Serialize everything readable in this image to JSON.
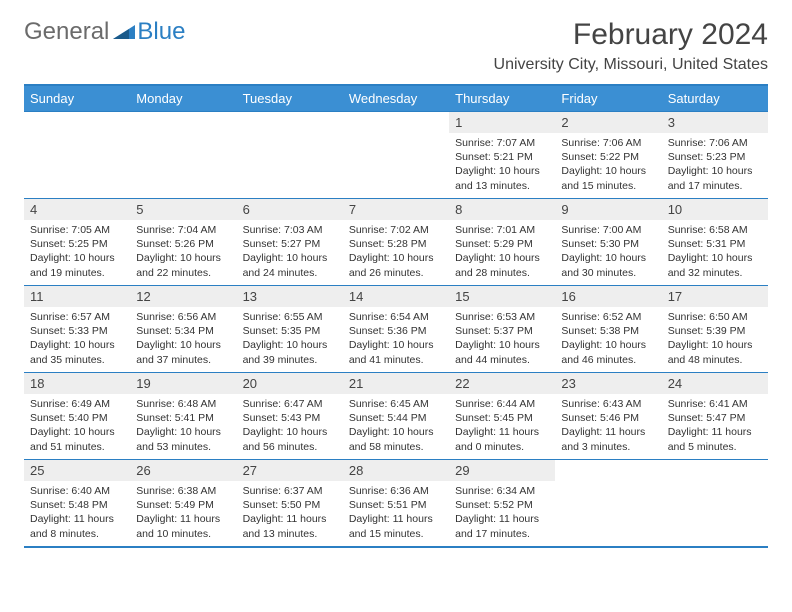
{
  "logo": {
    "word1": "General",
    "word2": "Blue"
  },
  "title": "February 2024",
  "location": "University City, Missouri, United States",
  "colors": {
    "accent": "#2b7fc3",
    "header_bg": "#3b8fd3",
    "daynum_bg": "#eeeeee",
    "text": "#333333",
    "title_text": "#444444",
    "logo_gray": "#6b6b6b"
  },
  "weekdays": [
    "Sunday",
    "Monday",
    "Tuesday",
    "Wednesday",
    "Thursday",
    "Friday",
    "Saturday"
  ],
  "weeks": [
    [
      {
        "num": "",
        "lines": []
      },
      {
        "num": "",
        "lines": []
      },
      {
        "num": "",
        "lines": []
      },
      {
        "num": "",
        "lines": []
      },
      {
        "num": "1",
        "lines": [
          "Sunrise: 7:07 AM",
          "Sunset: 5:21 PM",
          "Daylight: 10 hours and 13 minutes."
        ]
      },
      {
        "num": "2",
        "lines": [
          "Sunrise: 7:06 AM",
          "Sunset: 5:22 PM",
          "Daylight: 10 hours and 15 minutes."
        ]
      },
      {
        "num": "3",
        "lines": [
          "Sunrise: 7:06 AM",
          "Sunset: 5:23 PM",
          "Daylight: 10 hours and 17 minutes."
        ]
      }
    ],
    [
      {
        "num": "4",
        "lines": [
          "Sunrise: 7:05 AM",
          "Sunset: 5:25 PM",
          "Daylight: 10 hours and 19 minutes."
        ]
      },
      {
        "num": "5",
        "lines": [
          "Sunrise: 7:04 AM",
          "Sunset: 5:26 PM",
          "Daylight: 10 hours and 22 minutes."
        ]
      },
      {
        "num": "6",
        "lines": [
          "Sunrise: 7:03 AM",
          "Sunset: 5:27 PM",
          "Daylight: 10 hours and 24 minutes."
        ]
      },
      {
        "num": "7",
        "lines": [
          "Sunrise: 7:02 AM",
          "Sunset: 5:28 PM",
          "Daylight: 10 hours and 26 minutes."
        ]
      },
      {
        "num": "8",
        "lines": [
          "Sunrise: 7:01 AM",
          "Sunset: 5:29 PM",
          "Daylight: 10 hours and 28 minutes."
        ]
      },
      {
        "num": "9",
        "lines": [
          "Sunrise: 7:00 AM",
          "Sunset: 5:30 PM",
          "Daylight: 10 hours and 30 minutes."
        ]
      },
      {
        "num": "10",
        "lines": [
          "Sunrise: 6:58 AM",
          "Sunset: 5:31 PM",
          "Daylight: 10 hours and 32 minutes."
        ]
      }
    ],
    [
      {
        "num": "11",
        "lines": [
          "Sunrise: 6:57 AM",
          "Sunset: 5:33 PM",
          "Daylight: 10 hours and 35 minutes."
        ]
      },
      {
        "num": "12",
        "lines": [
          "Sunrise: 6:56 AM",
          "Sunset: 5:34 PM",
          "Daylight: 10 hours and 37 minutes."
        ]
      },
      {
        "num": "13",
        "lines": [
          "Sunrise: 6:55 AM",
          "Sunset: 5:35 PM",
          "Daylight: 10 hours and 39 minutes."
        ]
      },
      {
        "num": "14",
        "lines": [
          "Sunrise: 6:54 AM",
          "Sunset: 5:36 PM",
          "Daylight: 10 hours and 41 minutes."
        ]
      },
      {
        "num": "15",
        "lines": [
          "Sunrise: 6:53 AM",
          "Sunset: 5:37 PM",
          "Daylight: 10 hours and 44 minutes."
        ]
      },
      {
        "num": "16",
        "lines": [
          "Sunrise: 6:52 AM",
          "Sunset: 5:38 PM",
          "Daylight: 10 hours and 46 minutes."
        ]
      },
      {
        "num": "17",
        "lines": [
          "Sunrise: 6:50 AM",
          "Sunset: 5:39 PM",
          "Daylight: 10 hours and 48 minutes."
        ]
      }
    ],
    [
      {
        "num": "18",
        "lines": [
          "Sunrise: 6:49 AM",
          "Sunset: 5:40 PM",
          "Daylight: 10 hours and 51 minutes."
        ]
      },
      {
        "num": "19",
        "lines": [
          "Sunrise: 6:48 AM",
          "Sunset: 5:41 PM",
          "Daylight: 10 hours and 53 minutes."
        ]
      },
      {
        "num": "20",
        "lines": [
          "Sunrise: 6:47 AM",
          "Sunset: 5:43 PM",
          "Daylight: 10 hours and 56 minutes."
        ]
      },
      {
        "num": "21",
        "lines": [
          "Sunrise: 6:45 AM",
          "Sunset: 5:44 PM",
          "Daylight: 10 hours and 58 minutes."
        ]
      },
      {
        "num": "22",
        "lines": [
          "Sunrise: 6:44 AM",
          "Sunset: 5:45 PM",
          "Daylight: 11 hours and 0 minutes."
        ]
      },
      {
        "num": "23",
        "lines": [
          "Sunrise: 6:43 AM",
          "Sunset: 5:46 PM",
          "Daylight: 11 hours and 3 minutes."
        ]
      },
      {
        "num": "24",
        "lines": [
          "Sunrise: 6:41 AM",
          "Sunset: 5:47 PM",
          "Daylight: 11 hours and 5 minutes."
        ]
      }
    ],
    [
      {
        "num": "25",
        "lines": [
          "Sunrise: 6:40 AM",
          "Sunset: 5:48 PM",
          "Daylight: 11 hours and 8 minutes."
        ]
      },
      {
        "num": "26",
        "lines": [
          "Sunrise: 6:38 AM",
          "Sunset: 5:49 PM",
          "Daylight: 11 hours and 10 minutes."
        ]
      },
      {
        "num": "27",
        "lines": [
          "Sunrise: 6:37 AM",
          "Sunset: 5:50 PM",
          "Daylight: 11 hours and 13 minutes."
        ]
      },
      {
        "num": "28",
        "lines": [
          "Sunrise: 6:36 AM",
          "Sunset: 5:51 PM",
          "Daylight: 11 hours and 15 minutes."
        ]
      },
      {
        "num": "29",
        "lines": [
          "Sunrise: 6:34 AM",
          "Sunset: 5:52 PM",
          "Daylight: 11 hours and 17 minutes."
        ]
      },
      {
        "num": "",
        "lines": []
      },
      {
        "num": "",
        "lines": []
      }
    ]
  ]
}
